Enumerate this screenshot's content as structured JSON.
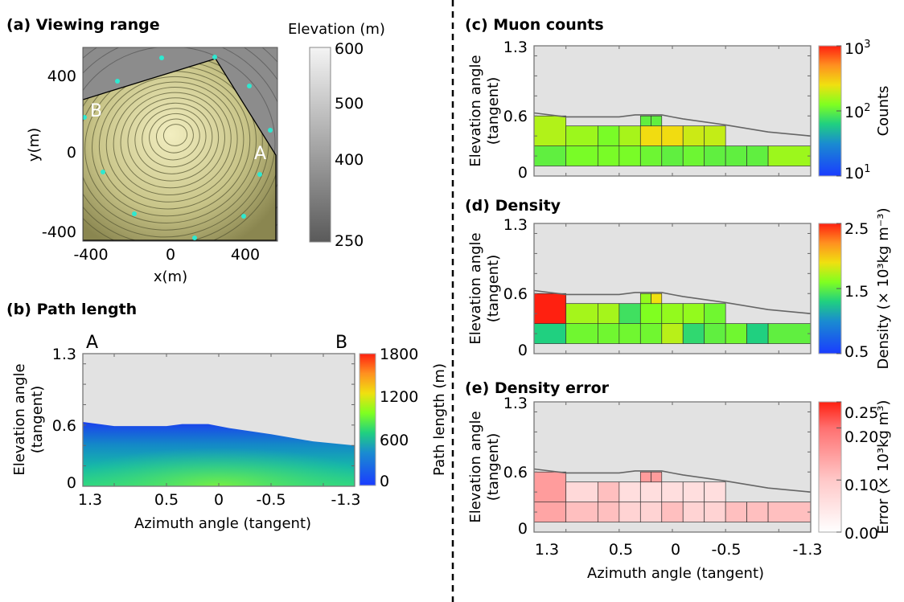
{
  "divider_color": "#000000",
  "chart_data": [
    {
      "id": "a",
      "type": "contour-map",
      "title": "(a) Viewing range",
      "xlabel": "x(m)",
      "ylabel": "y(m)",
      "xticks": [
        "-400",
        "0",
        "400"
      ],
      "yticks": [
        "400",
        "0",
        "-400"
      ],
      "colorbar": {
        "title": "Elevation (m)",
        "ticks": [
          "600",
          "500",
          "400",
          "250"
        ],
        "range": [
          250,
          600
        ]
      },
      "markers": {
        "A": "A",
        "B": "B"
      },
      "marker_color": "#2ee8d0",
      "region_color": "#c8c488"
    },
    {
      "id": "b",
      "type": "heatmap",
      "title": "(b) Path length",
      "xlabel": "Azimuth angle (tangent)",
      "ylabel": [
        "Elevation angle",
        "(tangent)"
      ],
      "xlim": [
        1.3,
        -1.3
      ],
      "ylim": [
        0,
        1.3
      ],
      "xticks": [
        "1.3",
        "0.5",
        "0",
        "-0.5",
        "-1.3"
      ],
      "yticks": [
        "1.3",
        "0.6",
        "0"
      ],
      "ends": {
        "left": "A",
        "right": "B"
      },
      "colorbar": {
        "title": "Path length (m)",
        "ticks": [
          "1800",
          "1200",
          "600",
          "0"
        ],
        "range": [
          0,
          1800
        ]
      }
    },
    {
      "id": "c",
      "type": "heatmap",
      "title": "(c) Muon counts",
      "ylabel": [
        "Elevation angle",
        "(tangent)"
      ],
      "yticks": [
        "1.3",
        "0.6",
        "0"
      ],
      "scale": "log",
      "range": [
        10,
        1000
      ],
      "colorbar": {
        "title": "Counts",
        "ticks": [
          {
            "base": "10",
            "exp": "3"
          },
          {
            "base": "10",
            "exp": "2"
          },
          {
            "base": "10",
            "exp": "1"
          }
        ]
      },
      "values": [
        100,
        120,
        120,
        120,
        110,
        100,
        110,
        100,
        100,
        100,
        150,
        170,
        150,
        120,
        160,
        260,
        260,
        200,
        190,
        100,
        100
      ]
    },
    {
      "id": "d",
      "type": "heatmap",
      "title": "(d) Density",
      "ylabel": [
        "Elevation angle",
        "(tangent)"
      ],
      "yticks": [
        "1.3",
        "0.6",
        "0"
      ],
      "scale": "linear",
      "range": [
        0.5,
        2.5
      ],
      "colorbar": {
        "title": "Density (× 10³kg m⁻³)",
        "ticks": [
          "2.5",
          "1.5",
          "0.5"
        ]
      },
      "values": [
        1.3,
        1.55,
        1.55,
        1.55,
        1.55,
        1.75,
        1.35,
        1.5,
        1.55,
        1.3,
        1.5,
        2.5,
        1.7,
        1.7,
        1.4,
        1.6,
        1.65,
        1.65,
        1.55,
        1.65,
        1.9
      ]
    },
    {
      "id": "e",
      "type": "heatmap",
      "title": "(e) Density error",
      "xlabel": "Azimuth angle (tangent)",
      "ylabel": [
        "Elevation angle",
        "(tangent)"
      ],
      "xticks": [
        "1.3",
        "0.5",
        "0",
        "-0.5",
        "-1.3"
      ],
      "yticks": [
        "1.3",
        "0.6",
        "0"
      ],
      "scale": "linear",
      "range": [
        0,
        0.25
      ],
      "colorbar": {
        "title": "Error (× 10³kg m³)",
        "ticks": [
          "0.25",
          "0.20",
          "0.10",
          "0.00"
        ]
      },
      "values": [
        0.14,
        0.11,
        0.11,
        0.08,
        0.08,
        0.11,
        0.08,
        0.08,
        0.11,
        0.11,
        0.11,
        0.15,
        0.07,
        0.11,
        0.06,
        0.06,
        0.06,
        0.06,
        0.06,
        0.15,
        0.15
      ]
    }
  ],
  "bins": [
    [
      1.3,
      1.0,
      0.1,
      0.3
    ],
    [
      1.0,
      0.7,
      0.1,
      0.3
    ],
    [
      0.7,
      0.5,
      0.1,
      0.3
    ],
    [
      0.5,
      0.3,
      0.1,
      0.3
    ],
    [
      0.3,
      0.1,
      0.1,
      0.3
    ],
    [
      0.1,
      -0.1,
      0.1,
      0.3
    ],
    [
      -0.1,
      -0.3,
      0.1,
      0.3
    ],
    [
      -0.3,
      -0.5,
      0.1,
      0.3
    ],
    [
      -0.5,
      -0.7,
      0.1,
      0.3
    ],
    [
      -0.7,
      -0.9,
      0.1,
      0.3
    ],
    [
      -0.9,
      -1.3,
      0.1,
      0.3
    ],
    [
      1.3,
      1.0,
      0.3,
      0.6
    ],
    [
      1.0,
      0.7,
      0.3,
      0.5
    ],
    [
      0.7,
      0.5,
      0.3,
      0.5
    ],
    [
      0.5,
      0.3,
      0.3,
      0.5
    ],
    [
      0.3,
      0.1,
      0.3,
      0.5
    ],
    [
      0.1,
      -0.1,
      0.3,
      0.5
    ],
    [
      -0.1,
      -0.3,
      0.3,
      0.5
    ],
    [
      -0.3,
      -0.5,
      0.3,
      0.5
    ],
    [
      0.3,
      0.2,
      0.5,
      0.6
    ],
    [
      0.2,
      0.1,
      0.5,
      0.6
    ]
  ],
  "terrain_outline": [
    [
      1.3,
      0.63
    ],
    [
      1.0,
      0.59
    ],
    [
      0.5,
      0.59
    ],
    [
      0.35,
      0.61
    ],
    [
      0.1,
      0.61
    ],
    [
      0.0,
      0.59
    ],
    [
      -0.1,
      0.57
    ],
    [
      -0.5,
      0.51
    ],
    [
      -0.9,
      0.44
    ],
    [
      -1.3,
      0.4
    ]
  ]
}
